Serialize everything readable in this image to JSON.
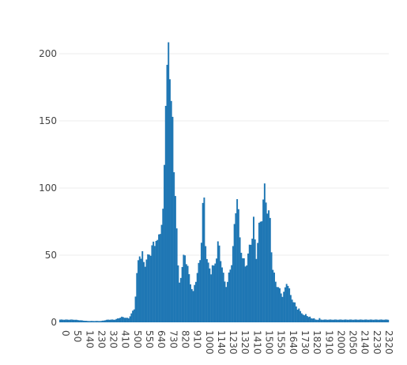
{
  "chart_data": {
    "type": "bar",
    "title": "",
    "xlabel": "",
    "ylabel": "",
    "bar_color": "#1f77b4",
    "grid": true,
    "legend": "none",
    "xlim": [
      0,
      2400
    ],
    "ylim": [
      0,
      210
    ],
    "bin_width": 10,
    "x_ticks": [
      "0",
      "50",
      "140",
      "230",
      "320",
      "410",
      "500",
      "550",
      "640",
      "730",
      "820",
      "910",
      "1000",
      "1140",
      "1230",
      "1320",
      "1410",
      "1500",
      "1550",
      "1640",
      "1730",
      "1820",
      "1910",
      "2000",
      "2050",
      "2140",
      "2230",
      "2320"
    ],
    "y_ticks": [
      "0",
      "50",
      "100",
      "150",
      "200"
    ],
    "points": [
      [
        0,
        2
      ],
      [
        100,
        2
      ],
      [
        200,
        1
      ],
      [
        300,
        1
      ],
      [
        350,
        2
      ],
      [
        400,
        2
      ],
      [
        450,
        4
      ],
      [
        500,
        3
      ],
      [
        540,
        10
      ],
      [
        550,
        20
      ],
      [
        560,
        35
      ],
      [
        570,
        45
      ],
      [
        580,
        52
      ],
      [
        590,
        48
      ],
      [
        600,
        50
      ],
      [
        610,
        45
      ],
      [
        620,
        44
      ],
      [
        630,
        46
      ],
      [
        640,
        48
      ],
      [
        650,
        52
      ],
      [
        660,
        52
      ],
      [
        670,
        55
      ],
      [
        680,
        58
      ],
      [
        690,
        60
      ],
      [
        700,
        62
      ],
      [
        710,
        58
      ],
      [
        720,
        65
      ],
      [
        730,
        70
      ],
      [
        740,
        72
      ],
      [
        750,
        80
      ],
      [
        760,
        120
      ],
      [
        770,
        170
      ],
      [
        780,
        185
      ],
      [
        790,
        200
      ],
      [
        800,
        190
      ],
      [
        810,
        170
      ],
      [
        820,
        145
      ],
      [
        830,
        110
      ],
      [
        840,
        100
      ],
      [
        850,
        70
      ],
      [
        860,
        40
      ],
      [
        870,
        30
      ],
      [
        880,
        35
      ],
      [
        890,
        40
      ],
      [
        900,
        48
      ],
      [
        910,
        52
      ],
      [
        920,
        45
      ],
      [
        930,
        40
      ],
      [
        940,
        35
      ],
      [
        950,
        30
      ],
      [
        960,
        25
      ],
      [
        970,
        22
      ],
      [
        980,
        28
      ],
      [
        990,
        32
      ],
      [
        1000,
        36
      ],
      [
        1010,
        42
      ],
      [
        1020,
        48
      ],
      [
        1030,
        62
      ],
      [
        1040,
        85
      ],
      [
        1050,
        90
      ],
      [
        1060,
        60
      ],
      [
        1070,
        48
      ],
      [
        1080,
        42
      ],
      [
        1090,
        40
      ],
      [
        1100,
        38
      ],
      [
        1110,
        42
      ],
      [
        1120,
        40
      ],
      [
        1130,
        45
      ],
      [
        1140,
        50
      ],
      [
        1150,
        58
      ],
      [
        1160,
        55
      ],
      [
        1170,
        48
      ],
      [
        1180,
        42
      ],
      [
        1190,
        35
      ],
      [
        1200,
        30
      ],
      [
        1210,
        28
      ],
      [
        1220,
        30
      ],
      [
        1230,
        35
      ],
      [
        1240,
        40
      ],
      [
        1250,
        45
      ],
      [
        1260,
        55
      ],
      [
        1270,
        70
      ],
      [
        1280,
        85
      ],
      [
        1290,
        95
      ],
      [
        1300,
        80
      ],
      [
        1310,
        62
      ],
      [
        1320,
        55
      ],
      [
        1330,
        48
      ],
      [
        1340,
        45
      ],
      [
        1350,
        42
      ],
      [
        1360,
        45
      ],
      [
        1370,
        50
      ],
      [
        1380,
        55
      ],
      [
        1390,
        60
      ],
      [
        1400,
        65
      ],
      [
        1410,
        75
      ],
      [
        1420,
        60
      ],
      [
        1430,
        50
      ],
      [
        1440,
        60
      ],
      [
        1450,
        70
      ],
      [
        1460,
        75
      ],
      [
        1470,
        80
      ],
      [
        1480,
        90
      ],
      [
        1490,
        98
      ],
      [
        1500,
        92
      ],
      [
        1510,
        85
      ],
      [
        1520,
        80
      ],
      [
        1530,
        75
      ],
      [
        1540,
        55
      ],
      [
        1550,
        40
      ],
      [
        1560,
        35
      ],
      [
        1570,
        30
      ],
      [
        1580,
        28
      ],
      [
        1590,
        26
      ],
      [
        1600,
        24
      ],
      [
        1610,
        22
      ],
      [
        1620,
        20
      ],
      [
        1630,
        22
      ],
      [
        1640,
        25
      ],
      [
        1650,
        30
      ],
      [
        1660,
        28
      ],
      [
        1670,
        24
      ],
      [
        1680,
        20
      ],
      [
        1690,
        18
      ],
      [
        1700,
        15
      ],
      [
        1710,
        14
      ],
      [
        1720,
        12
      ],
      [
        1730,
        10
      ],
      [
        1740,
        10
      ],
      [
        1750,
        8
      ],
      [
        1760,
        7
      ],
      [
        1770,
        6
      ],
      [
        1780,
        5
      ],
      [
        1790,
        6
      ],
      [
        1800,
        5
      ],
      [
        1810,
        4
      ],
      [
        1820,
        4
      ],
      [
        1830,
        3
      ],
      [
        1840,
        3
      ],
      [
        1850,
        3
      ],
      [
        1860,
        2
      ],
      [
        1870,
        2
      ],
      [
        1880,
        2
      ],
      [
        1890,
        3
      ],
      [
        1900,
        2
      ]
    ]
  }
}
